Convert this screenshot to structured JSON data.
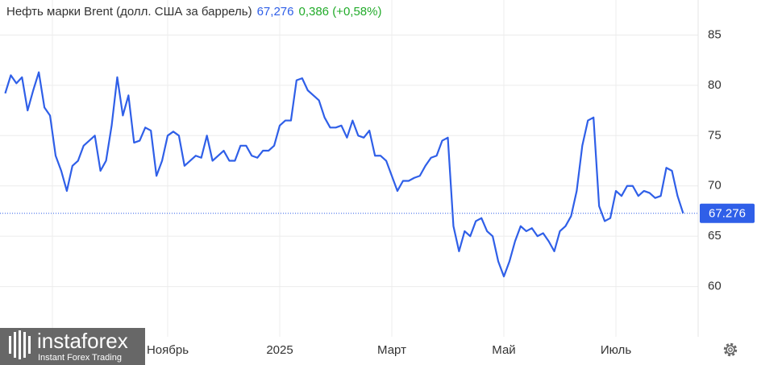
{
  "chart_data": {
    "type": "line",
    "title": "Нефть марки Brent (долл. США за баррель)",
    "price_label": "67,276",
    "change_label": "0,386 (+0,58%)",
    "categories": [
      null,
      null,
      null,
      null,
      null,
      null,
      null,
      null,
      null,
      null,
      null,
      null,
      null,
      null,
      null,
      null,
      null,
      null,
      null,
      null,
      null,
      null,
      null,
      null,
      null,
      null,
      null,
      null,
      null,
      "Ноябрь",
      null,
      null,
      null,
      null,
      null,
      null,
      null,
      null,
      null,
      null,
      null,
      null,
      null,
      null,
      null,
      null,
      null,
      null,
      null,
      "2025",
      null,
      null,
      null,
      null,
      null,
      null,
      null,
      null,
      null,
      null,
      null,
      null,
      null,
      null,
      null,
      null,
      null,
      null,
      null,
      "Март",
      null,
      null,
      null,
      null,
      null,
      null,
      null,
      null,
      null,
      null,
      null,
      null,
      null,
      null,
      null,
      null,
      null,
      null,
      null,
      "Май",
      null,
      null,
      null,
      null,
      null,
      null,
      null,
      null,
      null,
      null,
      null,
      null,
      null,
      null,
      null,
      null,
      null,
      null,
      null,
      "Июль",
      null,
      null,
      null,
      null,
      null,
      null,
      null,
      null,
      null,
      null,
      null,
      null
    ],
    "series": [
      {
        "color": "#2f5fe8",
        "values": [
          79.2,
          81.0,
          80.2,
          80.8,
          77.5,
          79.5,
          81.3,
          77.8,
          77.0,
          73.0,
          71.5,
          69.5,
          72.0,
          72.5,
          74.0,
          74.5,
          75.0,
          71.5,
          72.5,
          76.0,
          80.8,
          77.0,
          79.0,
          74.3,
          74.5,
          75.8,
          75.5,
          71.0,
          72.5,
          75.0,
          75.4,
          75.0,
          72.0,
          72.5,
          73.0,
          72.8,
          75.0,
          72.5,
          73.0,
          73.5,
          72.5,
          72.5,
          74.0,
          74.0,
          73.0,
          72.8,
          73.5,
          73.5,
          74.0,
          76.0,
          76.5,
          76.5,
          80.5,
          80.7,
          79.5,
          79.0,
          78.5,
          76.8,
          75.8,
          75.8,
          76.0,
          74.8,
          76.5,
          75.0,
          74.8,
          75.5,
          73.0,
          73.0,
          72.5,
          71.0,
          69.5,
          70.5,
          70.5,
          70.8,
          71.0,
          72.0,
          72.8,
          73.0,
          74.5,
          74.8,
          66.0,
          63.5,
          65.5,
          65.0,
          66.5,
          66.8,
          65.5,
          65.0,
          62.5,
          61.0,
          62.5,
          64.5,
          66.0,
          65.5,
          65.8,
          65.0,
          65.3,
          64.5,
          63.5,
          65.5,
          66.0,
          67.0,
          69.5,
          74.0,
          76.5,
          76.8,
          68.0,
          66.5,
          66.8,
          69.5,
          69.0,
          70.0,
          70.0,
          69.0,
          69.5,
          69.3,
          68.8,
          69.0,
          71.8,
          71.5,
          69.0,
          67.276
        ]
      }
    ],
    "ylim": [
      55,
      88
    ],
    "yticks": [
      60,
      65,
      70,
      75,
      80,
      85
    ],
    "grid": true
  },
  "watermark": {
    "brand": "instaforex",
    "tagline": "Instant Forex Trading"
  }
}
